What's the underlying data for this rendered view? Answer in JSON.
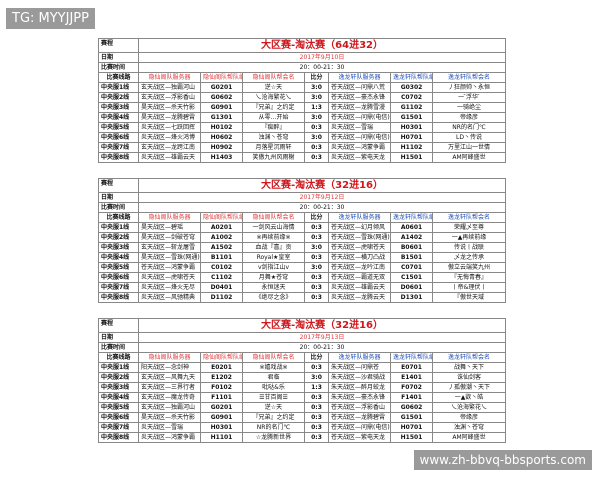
{
  "watermark": "TG: MYYJJPP",
  "footer_url": "www.zh-bbvq-bbsports.com",
  "labels": {
    "schedule": "赛程",
    "date": "日期",
    "time": "比赛时间"
  },
  "columns": [
    "比赛线路",
    "隐仙阁队服务器",
    "隐仙阁队帮队编号",
    "隐仙阁队帮会名",
    "比分",
    "逸龙轩队服务器",
    "逸龙轩队帮队编号",
    "逸龙轩队帮会名"
  ],
  "tables": [
    {
      "title": "大区赛-淘汰赛（64进32）",
      "date": "2017年9月10日",
      "time": "20：00-21：30",
      "rows": [
        [
          "中央服1线",
          "玄天战区—独霸河山",
          "G0201",
          "逆☆天",
          "3:0",
          "苍天战区—问鼎八荒",
          "G0302",
          "丿狂颜帅丶永恒"
        ],
        [
          "中央服2线",
          "玄天战区—浮影香山",
          "G0602",
          "乀沧海繁花乀",
          "3:0",
          "苍天战区—豪杰永锋",
          "C0702",
          "一 ̄浮华 ̄"
        ],
        [
          "中央服3线",
          "昊天战区—杀天竹影",
          "G0901",
          "『兄弟』之约定",
          "1:3",
          "苍天战区—龙腾雪漫",
          "G1102",
          "一骑绝尘"
        ],
        [
          "中央服4线",
          "昊天战区—龙腾碧霄",
          "G1301",
          "从零…开始",
          "3:0",
          "苍天战区—问鼎(电信)",
          "G1501",
          "帝缘彦"
        ],
        [
          "中央服5线",
          "炎天战区—七跃回挥",
          "H0102",
          "『痴醉』",
          "0:3",
          "炎天战区—雪瑞",
          "H0301",
          "NR的名门℃"
        ],
        [
          "中央服6线",
          "炎天战区—烽火鸿博",
          "H0602",
          "浊渊丶苍穹",
          "3:0",
          "苍天战区—问鼎(电信)",
          "H0701",
          "LD丶传说"
        ],
        [
          "中央服7线",
          "玄天战区—龙跨江南",
          "H0902",
          "月落星沉雨轩",
          "0:3",
          "炎天战区—鸿蒙争霸",
          "H1102",
          "万里江山一世情"
        ],
        [
          "中央服8线",
          "炎天战区—雄霸云天",
          "H1403",
          "笑傲九州风雨榭",
          "0:3",
          "炎天战区—紫电天龙",
          "H1501",
          "AM阿峰盛世"
        ]
      ]
    },
    {
      "title": "大区赛-淘汰赛（32进16）",
      "date": "2017年9月12日",
      "time": "20：00-21：30",
      "rows": [
        [
          "中央服1线",
          "昊天战区—碧瑶",
          "A0201",
          "一剑风云山海情",
          "0:3",
          "苍天战区—幻月倾风",
          "A0601",
          "荣耀乄至尊"
        ],
        [
          "中央服2线",
          "昊天战区—剑破苍穹",
          "A1002",
          "※再续前缘※",
          "0:3",
          "苍天战区—雪珠(网通)",
          "A1402",
          "一▲再续前缘"
        ],
        [
          "中央服3线",
          "玄天战区—斩龙屠雪",
          "A1502",
          "血战『喜』贡",
          "3:0",
          "苍天战区—虎啸苍天",
          "B0601",
          "传说丨战联"
        ],
        [
          "中央服4线",
          "昊天战区—雪珠(网通)",
          "B1101",
          "Royal★皇室",
          "0:3",
          "苍天战区—横刀凸战",
          "B1501",
          "乄龙之传承"
        ],
        [
          "中央服5线",
          "苍天战区—鸿蒙争霸",
          "C0102",
          "v剑指江山v",
          "3:0",
          "苍天战区—龙吟江南",
          "C0701",
          "傲立云端笑九州"
        ],
        [
          "中央服6线",
          "炎天战区—虎啸苍天",
          "C1102",
          "月舞★苍穹",
          "0:3",
          "苍天战区—霸道无双",
          "C1501",
          "『无悔青春』"
        ],
        [
          "中央服7线",
          "炎天战区—烽火无尽",
          "D0401",
          "永恒迷天",
          "0:3",
          "炎天战区—雄霸云天",
          "D0601",
          "丨帝&理伏丨"
        ],
        [
          "中央服8线",
          "炎天战区—风驰精典",
          "D1102",
          "《绝尽之念》",
          "0:3",
          "炎天战区—龙腾云天",
          "D1301",
          "『傲世天域"
        ]
      ]
    },
    {
      "title": "大区赛-淘汰赛（32进16）",
      "date": "2017年9月13日",
      "time": "20：00-21：30",
      "rows": [
        [
          "中央服1线",
          "阳天战区—念剑神",
          "E0201",
          "※嬉戏战※",
          "0:3",
          "朱天战区—问鼎苍",
          "E0701",
          "战舞丶天下"
        ],
        [
          "中央服2线",
          "玄天战区—风舞九天",
          "E1202",
          "君临",
          "3:0",
          "朱天战区—沙君骑战",
          "E1401",
          "诛仙剑客"
        ],
        [
          "中央服3线",
          "玄天战区—三界行者",
          "F0102",
          "吡哒&乐",
          "1:3",
          "朱天战区—醉月蛟龙",
          "F0702",
          "丿孤傲潮丶天下"
        ],
        [
          "中央服4线",
          "玄天战区—魔龙传奇",
          "F1101",
          "☰甘百阁☰",
          "0:3",
          "朱天战区—豪杰永锋",
          "F1401",
          "一▲欲丶皓"
        ],
        [
          "中央服5线",
          "玄天战区—独霸河山",
          "G0201",
          "逆☆天",
          "0:3",
          "苍天战区—浮影香山",
          "G0602",
          "乀沧海繁花乀"
        ],
        [
          "中央服6线",
          "昊天战区—杀天竹影",
          "G0901",
          "『兄弟』之约定",
          "0:3",
          "苍天战区—龙腾碧霄",
          "G1501",
          "帝缘彦"
        ],
        [
          "中央服7线",
          "炎天战区—雪瑞",
          "H0301",
          "NR的名门℃",
          "0:3",
          "苍天战区—问鼎(电信)",
          "H0701",
          "浊渊丶苍穹"
        ],
        [
          "中央服8线",
          "炎天战区—鸿蒙争霸",
          "H1101",
          "☆龙腾新世界",
          "0:3",
          "苍天战区—紫电天龙",
          "H1501",
          "AM阿峰盛世"
        ]
      ]
    }
  ]
}
